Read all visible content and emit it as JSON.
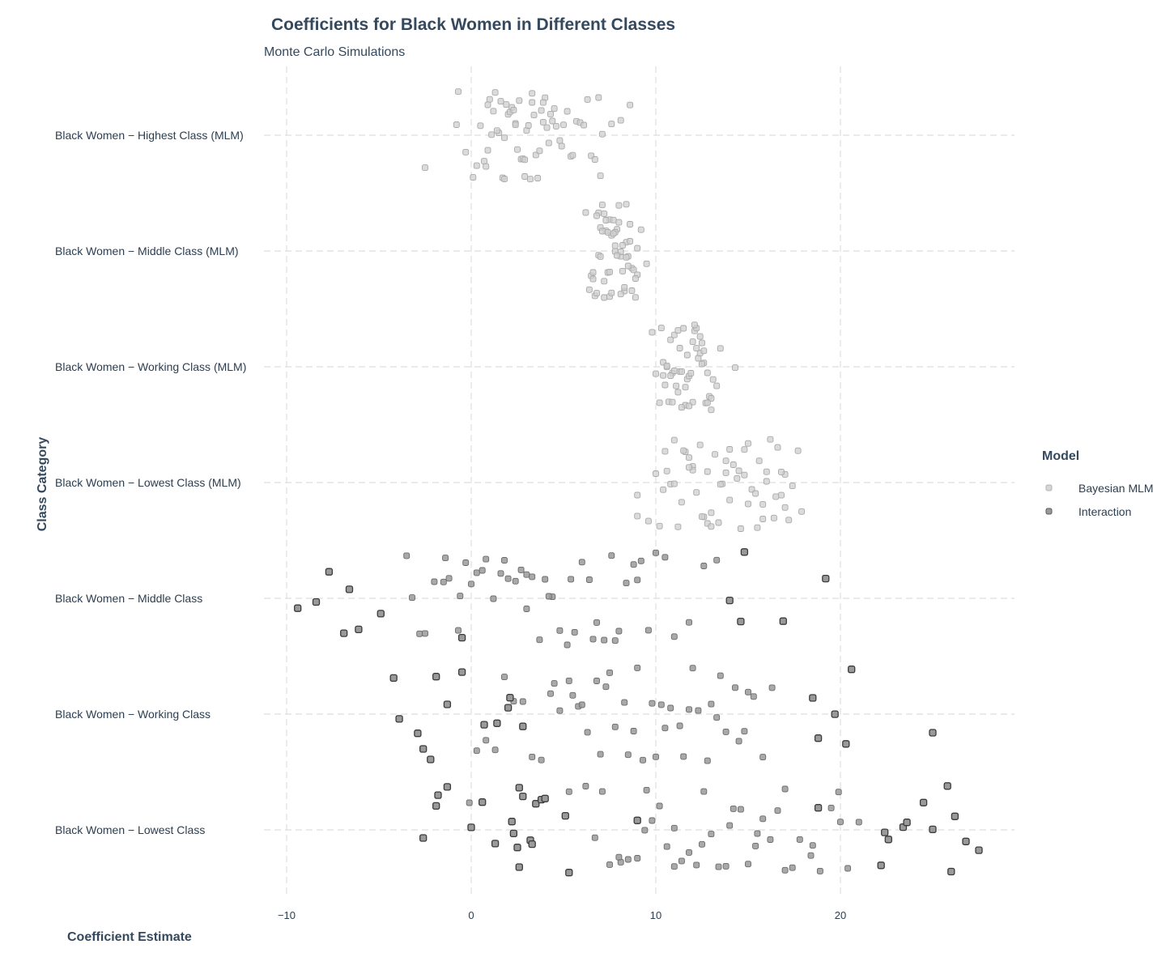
{
  "chart_data": {
    "type": "scatter",
    "title": "Coefficients for Black Women in Different Classes",
    "subtitle": "Monte Carlo Simulations",
    "xlabel": "Coefficient Estimate",
    "ylabel": "Class Category",
    "xlim": [
      -11.3,
      29.5
    ],
    "xticks": [
      -10,
      0,
      10,
      20
    ],
    "xtick_labels": [
      "−10",
      "0",
      "10",
      "20"
    ],
    "categories": [
      "Black Women − Highest Class (MLM)",
      "Black Women − Middle Class (MLM)",
      "Black Women − Working Class (MLM)",
      "Black Women − Lowest Class (MLM)",
      "Black Women − Middle Class",
      "Black Women − Working Class",
      "Black Women − Lowest Class"
    ],
    "grid": true,
    "legend": {
      "title": "Model",
      "position": "right",
      "entries": [
        "Bayesian MLM",
        "Interaction"
      ]
    },
    "colors": {
      "bayesian_fill": "#cfcfcf",
      "bayesian_stroke": "#a9a9a9",
      "interaction_fill": "#9a9a9a",
      "interaction_stroke": "#3a3a3a",
      "text": "#34495e",
      "grid": "#e3e3e3"
    },
    "series": [
      {
        "name": "Bayesian MLM",
        "category_index": 0,
        "x_values": [
          -0.7,
          -0.3,
          0.1,
          0.3,
          0.5,
          0.7,
          0.8,
          0.9,
          1.0,
          1.1,
          1.2,
          1.3,
          1.5,
          1.6,
          1.7,
          1.8,
          1.9,
          2.0,
          2.1,
          2.2,
          2.3,
          2.4,
          2.5,
          2.6,
          2.7,
          2.8,
          2.9,
          3.0,
          3.1,
          3.2,
          3.3,
          3.4,
          3.5,
          3.6,
          3.7,
          3.8,
          3.9,
          4.0,
          4.1,
          4.2,
          4.4,
          4.5,
          4.6,
          4.8,
          4.9,
          5.0,
          5.2,
          5.4,
          5.5,
          5.7,
          5.9,
          6.1,
          6.3,
          6.5,
          6.7,
          6.9,
          7.1,
          7.0,
          7.6,
          8.1,
          8.6,
          -0.8,
          0.9,
          1.4,
          1.8,
          2.4,
          2.9,
          3.3,
          3.9,
          4.3
        ]
      },
      {
        "name": "Bayesian MLM",
        "category_index": 1,
        "x_values": [
          6.2,
          6.4,
          6.5,
          6.6,
          6.7,
          6.8,
          6.9,
          7.0,
          7.1,
          7.2,
          7.3,
          7.4,
          7.5,
          7.6,
          7.7,
          7.8,
          7.9,
          8.0,
          8.1,
          8.2,
          8.3,
          8.4,
          8.5,
          8.6,
          8.7,
          8.8,
          8.9,
          9.0,
          9.2,
          9.5,
          6.6,
          6.9,
          7.2,
          7.5,
          7.8,
          8.1,
          8.4,
          8.7,
          9.0,
          7.0,
          7.3,
          7.6,
          7.9,
          8.2,
          8.5,
          6.8,
          7.1,
          7.4,
          7.7,
          8.0,
          8.3,
          8.6,
          8.9,
          7.2,
          7.5,
          7.8,
          8.1,
          8.4
        ]
      },
      {
        "name": "Bayesian MLM",
        "category_index": 2,
        "x_values": [
          9.8,
          10.0,
          10.2,
          10.3,
          10.4,
          10.5,
          10.6,
          10.7,
          10.8,
          10.9,
          11.0,
          11.1,
          11.2,
          11.3,
          11.4,
          11.5,
          11.6,
          11.7,
          11.8,
          11.9,
          12.0,
          12.1,
          12.2,
          12.3,
          12.4,
          12.5,
          12.6,
          12.7,
          12.8,
          12.9,
          13.0,
          13.1,
          13.3,
          13.5,
          10.4,
          10.8,
          11.2,
          11.6,
          12.0,
          12.4,
          12.8,
          10.6,
          11.0,
          11.4,
          11.8,
          12.2,
          12.6,
          13.0,
          10.9,
          11.3,
          11.7,
          12.1,
          12.5
        ]
      },
      {
        "name": "Bayesian MLM",
        "category_index": 3,
        "x_values": [
          9.0,
          9.6,
          10.0,
          10.2,
          10.4,
          10.6,
          10.8,
          11.0,
          11.2,
          11.4,
          11.6,
          11.8,
          12.0,
          12.2,
          12.4,
          12.6,
          12.8,
          13.0,
          13.2,
          13.4,
          13.6,
          13.8,
          14.0,
          14.2,
          14.4,
          14.6,
          14.8,
          15.0,
          15.2,
          15.4,
          15.6,
          15.8,
          16.0,
          16.2,
          16.4,
          16.6,
          16.8,
          17.0,
          17.2,
          17.4,
          17.7,
          17.9,
          10.5,
          11.5,
          12.5,
          13.5,
          14.5,
          15.5,
          16.5,
          11.0,
          12.0,
          13.0,
          14.0,
          15.0,
          16.0,
          17.0,
          11.8,
          12.8,
          13.8,
          14.8,
          15.8,
          16.8
        ]
      },
      {
        "name": "Interaction",
        "category_index": 4,
        "x_values": [
          -3.5,
          -3.2,
          -2.8,
          -2.5,
          -2.0,
          -1.5,
          -1.2,
          -0.7,
          -0.3,
          0.0,
          0.3,
          0.8,
          1.2,
          1.6,
          2.0,
          2.4,
          2.7,
          3.0,
          3.3,
          3.7,
          4.0,
          4.4,
          4.8,
          5.2,
          5.6,
          6.0,
          6.4,
          6.8,
          7.2,
          7.6,
          8.0,
          8.4,
          8.8,
          9.2,
          9.6,
          10.0,
          10.5,
          11.0,
          11.8,
          12.6,
          13.3,
          -1.4,
          -0.6,
          0.6,
          1.8,
          3.0,
          4.2,
          5.4,
          6.6,
          7.8,
          9.0
        ]
      },
      {
        "name": "Interaction",
        "category_index": 5,
        "x_values": [
          0.3,
          0.8,
          1.3,
          1.8,
          2.3,
          2.8,
          3.3,
          3.8,
          4.3,
          4.8,
          5.3,
          5.8,
          6.3,
          6.8,
          7.3,
          7.8,
          8.3,
          8.8,
          9.3,
          9.8,
          10.3,
          10.8,
          11.3,
          11.8,
          12.3,
          12.8,
          13.3,
          13.8,
          14.3,
          14.8,
          15.3,
          15.8,
          16.3,
          4.5,
          6.0,
          7.5,
          9.0,
          10.5,
          12.0,
          13.5,
          15.0,
          5.5,
          7.0,
          8.5,
          10.0,
          11.5,
          13.0,
          14.5
        ]
      },
      {
        "name": "Interaction",
        "category_index": 6,
        "x_values": [
          -0.1,
          5.3,
          6.2,
          6.7,
          7.1,
          7.5,
          8.1,
          8.5,
          9.0,
          9.4,
          9.8,
          10.2,
          10.6,
          11.0,
          11.4,
          11.8,
          12.2,
          12.6,
          13.0,
          13.4,
          13.8,
          14.2,
          14.6,
          15.0,
          15.4,
          15.8,
          16.2,
          16.6,
          17.0,
          17.4,
          17.8,
          18.4,
          18.9,
          19.5,
          19.9,
          20.4,
          21.0,
          8.0,
          9.5,
          11.0,
          12.5,
          14.0,
          15.5,
          17.0,
          18.5,
          20.0
        ]
      },
      {
        "name": "Interaction",
        "category_index": 4,
        "x_values": [
          -9.4,
          -8.4,
          -7.7,
          -6.9,
          -6.6,
          -6.1,
          -4.9,
          -0.5,
          14.0,
          14.6,
          14.8,
          16.9,
          19.2
        ]
      },
      {
        "name": "Interaction",
        "category_index": 5,
        "x_values": [
          -4.2,
          -3.9,
          -2.9,
          -2.6,
          -2.2,
          -1.9,
          -1.3,
          -0.5,
          0.7,
          1.4,
          2.0,
          2.1,
          2.8,
          18.5,
          18.8,
          19.7,
          20.3,
          20.6,
          25.0
        ]
      },
      {
        "name": "Interaction",
        "category_index": 6,
        "x_values": [
          -2.6,
          -1.9,
          -1.8,
          -1.3,
          0.0,
          0.6,
          1.3,
          2.2,
          2.3,
          2.5,
          2.6,
          2.6,
          2.8,
          3.2,
          3.3,
          3.5,
          3.8,
          4.0,
          5.1,
          5.3,
          9.0,
          18.8,
          22.2,
          22.4,
          22.6,
          23.4,
          23.6,
          24.5,
          25.0,
          25.8,
          26.0,
          26.2,
          26.8,
          27.5
        ]
      },
      {
        "name": "Bayesian MLM",
        "category_index": 0,
        "x_values": [
          -2.5
        ]
      },
      {
        "name": "Bayesian MLM",
        "category_index": 2,
        "x_values": [
          14.3
        ]
      },
      {
        "name": "Bayesian MLM",
        "category_index": 3,
        "x_values": [
          9.0
        ]
      }
    ]
  }
}
